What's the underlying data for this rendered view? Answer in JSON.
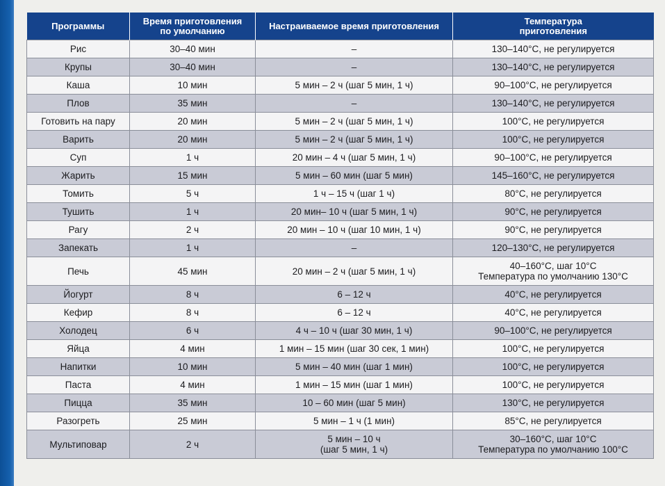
{
  "table": {
    "headers": {
      "program": "Программы",
      "default_time": [
        "Время приготовления",
        "по умолчанию"
      ],
      "adjustable_time": "Настраиваемое время приготовления",
      "temperature": [
        "Температура",
        "приготовления"
      ]
    },
    "rows": [
      {
        "program": "Рис",
        "default_time": "30–40 мин",
        "adjustable_time": [
          "–"
        ],
        "temperature": [
          "130–140°С, не регулируется"
        ]
      },
      {
        "program": "Крупы",
        "default_time": "30–40 мин",
        "adjustable_time": [
          "–"
        ],
        "temperature": [
          "130–140°С, не регулируется"
        ]
      },
      {
        "program": "Каша",
        "default_time": "10 мин",
        "adjustable_time": [
          "5 мин – 2 ч (шаг 5 мин, 1 ч)"
        ],
        "temperature": [
          "90–100°С, не регулируется"
        ]
      },
      {
        "program": "Плов",
        "default_time": "35 мин",
        "adjustable_time": [
          "–"
        ],
        "temperature": [
          "130–140°С, не регулируется"
        ]
      },
      {
        "program": "Готовить на пару",
        "default_time": "20 мин",
        "adjustable_time": [
          "5 мин – 2 ч (шаг 5 мин, 1 ч)"
        ],
        "temperature": [
          "100°С, не регулируется"
        ]
      },
      {
        "program": "Варить",
        "default_time": "20 мин",
        "adjustable_time": [
          "5 мин – 2 ч (шаг 5 мин, 1 ч)"
        ],
        "temperature": [
          "100°С, не регулируется"
        ]
      },
      {
        "program": "Суп",
        "default_time": "1 ч",
        "adjustable_time": [
          "20 мин – 4 ч (шаг 5 мин, 1 ч)"
        ],
        "temperature": [
          "90–100°С, не регулируется"
        ]
      },
      {
        "program": "Жарить",
        "default_time": "15 мин",
        "adjustable_time": [
          "5 мин – 60 мин (шаг 5 мин)"
        ],
        "temperature": [
          "145–160°С, не регулируется"
        ]
      },
      {
        "program": "Томить",
        "default_time": "5 ч",
        "adjustable_time": [
          "1 ч – 15 ч (шаг 1 ч)"
        ],
        "temperature": [
          "80°С, не регулируется"
        ]
      },
      {
        "program": "Тушить",
        "default_time": "1 ч",
        "adjustable_time": [
          "20 мин– 10 ч (шаг 5 мин, 1 ч)"
        ],
        "temperature": [
          "90°С, не регулируется"
        ]
      },
      {
        "program": "Рагу",
        "default_time": "2 ч",
        "adjustable_time": [
          "20 мин – 10 ч (шаг 10 мин, 1 ч)"
        ],
        "temperature": [
          "90°С, не регулируется"
        ]
      },
      {
        "program": "Запекать",
        "default_time": "1 ч",
        "adjustable_time": [
          "–"
        ],
        "temperature": [
          "120–130°С, не регулируется"
        ]
      },
      {
        "program": "Печь",
        "default_time": "45 мин",
        "adjustable_time": [
          "20 мин – 2 ч (шаг 5 мин, 1 ч)"
        ],
        "temperature": [
          "40–160°С, шаг 10°С",
          "Температура по умолчанию 130°С"
        ]
      },
      {
        "program": "Йогурт",
        "default_time": "8 ч",
        "adjustable_time": [
          "6 – 12 ч"
        ],
        "temperature": [
          "40°С, не регулируется"
        ]
      },
      {
        "program": "Кефир",
        "default_time": "8 ч",
        "adjustable_time": [
          "6 – 12 ч"
        ],
        "temperature": [
          "40°С, не регулируется"
        ]
      },
      {
        "program": "Холодец",
        "default_time": "6 ч",
        "adjustable_time": [
          "4 ч – 10 ч (шаг 30 мин, 1 ч)"
        ],
        "temperature": [
          "90–100°С, не регулируется"
        ]
      },
      {
        "program": "Яйца",
        "default_time": "4 мин",
        "adjustable_time": [
          "1 мин – 15 мин (шаг 30 сек, 1 мин)"
        ],
        "temperature": [
          "100°С, не регулируется"
        ]
      },
      {
        "program": "Напитки",
        "default_time": "10 мин",
        "adjustable_time": [
          "5 мин – 40 мин (шаг 1 мин)"
        ],
        "temperature": [
          "100°С, не регулируется"
        ]
      },
      {
        "program": "Паста",
        "default_time": "4 мин",
        "adjustable_time": [
          "1 мин – 15 мин (шаг 1 мин)"
        ],
        "temperature": [
          "100°С, не регулируется"
        ]
      },
      {
        "program": "Пицца",
        "default_time": "35 мин",
        "adjustable_time": [
          "10 – 60 мин (шаг 5 мин)"
        ],
        "temperature": [
          "130°С, не регулируется"
        ]
      },
      {
        "program": "Разогреть",
        "default_time": "25 мин",
        "adjustable_time": [
          "5 мин – 1 ч (1 мин)"
        ],
        "temperature": [
          "85°С, не регулируется"
        ]
      },
      {
        "program": "Мультиповар",
        "default_time": "2 ч",
        "adjustable_time": [
          "5 мин – 10 ч",
          "(шаг 5 мин, 1 ч)"
        ],
        "temperature": [
          "30–160°С, шаг 10°С",
          "Температура по умолчанию 100°С"
        ]
      }
    ]
  },
  "colors": {
    "header_bg": "#15438c",
    "row_light": "#f4f4f5",
    "row_dark": "#c9cbd6",
    "side_band": "#1560ad"
  }
}
